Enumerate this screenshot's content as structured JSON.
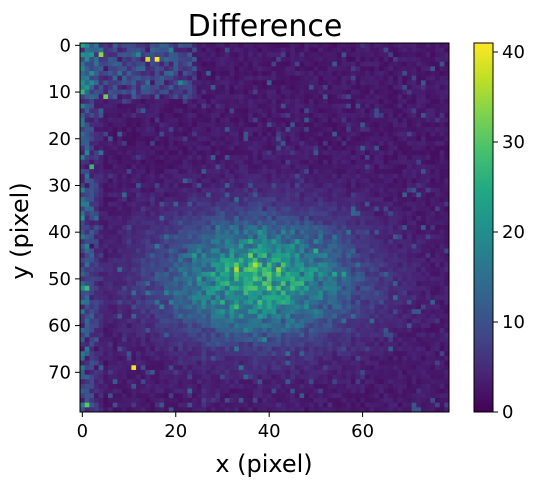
{
  "chart_data": {
    "type": "heatmap",
    "title": "Difference",
    "xlabel": "x (pixel)",
    "ylabel": "y (pixel)",
    "colormap": "viridis",
    "grid": false,
    "x_range": [
      0,
      79
    ],
    "y_range": [
      0,
      79
    ],
    "y_inverted": true,
    "x_ticks": [
      "0",
      "20",
      "40",
      "60"
    ],
    "y_ticks": [
      "0",
      "10",
      "20",
      "30",
      "40",
      "50",
      "60",
      "70"
    ],
    "colorbar": {
      "min": 0,
      "max": 41,
      "ticks": [
        "0",
        "10",
        "20",
        "30",
        "40"
      ]
    },
    "blob": {
      "center_x": 38,
      "center_y": 50,
      "peak_value": 24,
      "sigma_x": 14,
      "sigma_y": 9
    },
    "hot_pixels": [
      {
        "x": 16,
        "y": 3,
        "value": 41
      },
      {
        "x": 14,
        "y": 3,
        "value": 38
      },
      {
        "x": 11,
        "y": 69,
        "value": 40
      },
      {
        "x": 4,
        "y": 2,
        "value": 34
      },
      {
        "x": 5,
        "y": 11,
        "value": 32
      },
      {
        "x": 2,
        "y": 26,
        "value": 27
      },
      {
        "x": 1,
        "y": 52,
        "value": 28
      },
      {
        "x": 33,
        "y": 48,
        "value": 36
      },
      {
        "x": 37,
        "y": 47,
        "value": 36
      },
      {
        "x": 42,
        "y": 48,
        "value": 34
      },
      {
        "x": 40,
        "y": 52,
        "value": 33
      },
      {
        "x": 1,
        "y": 77,
        "value": 30
      }
    ]
  }
}
